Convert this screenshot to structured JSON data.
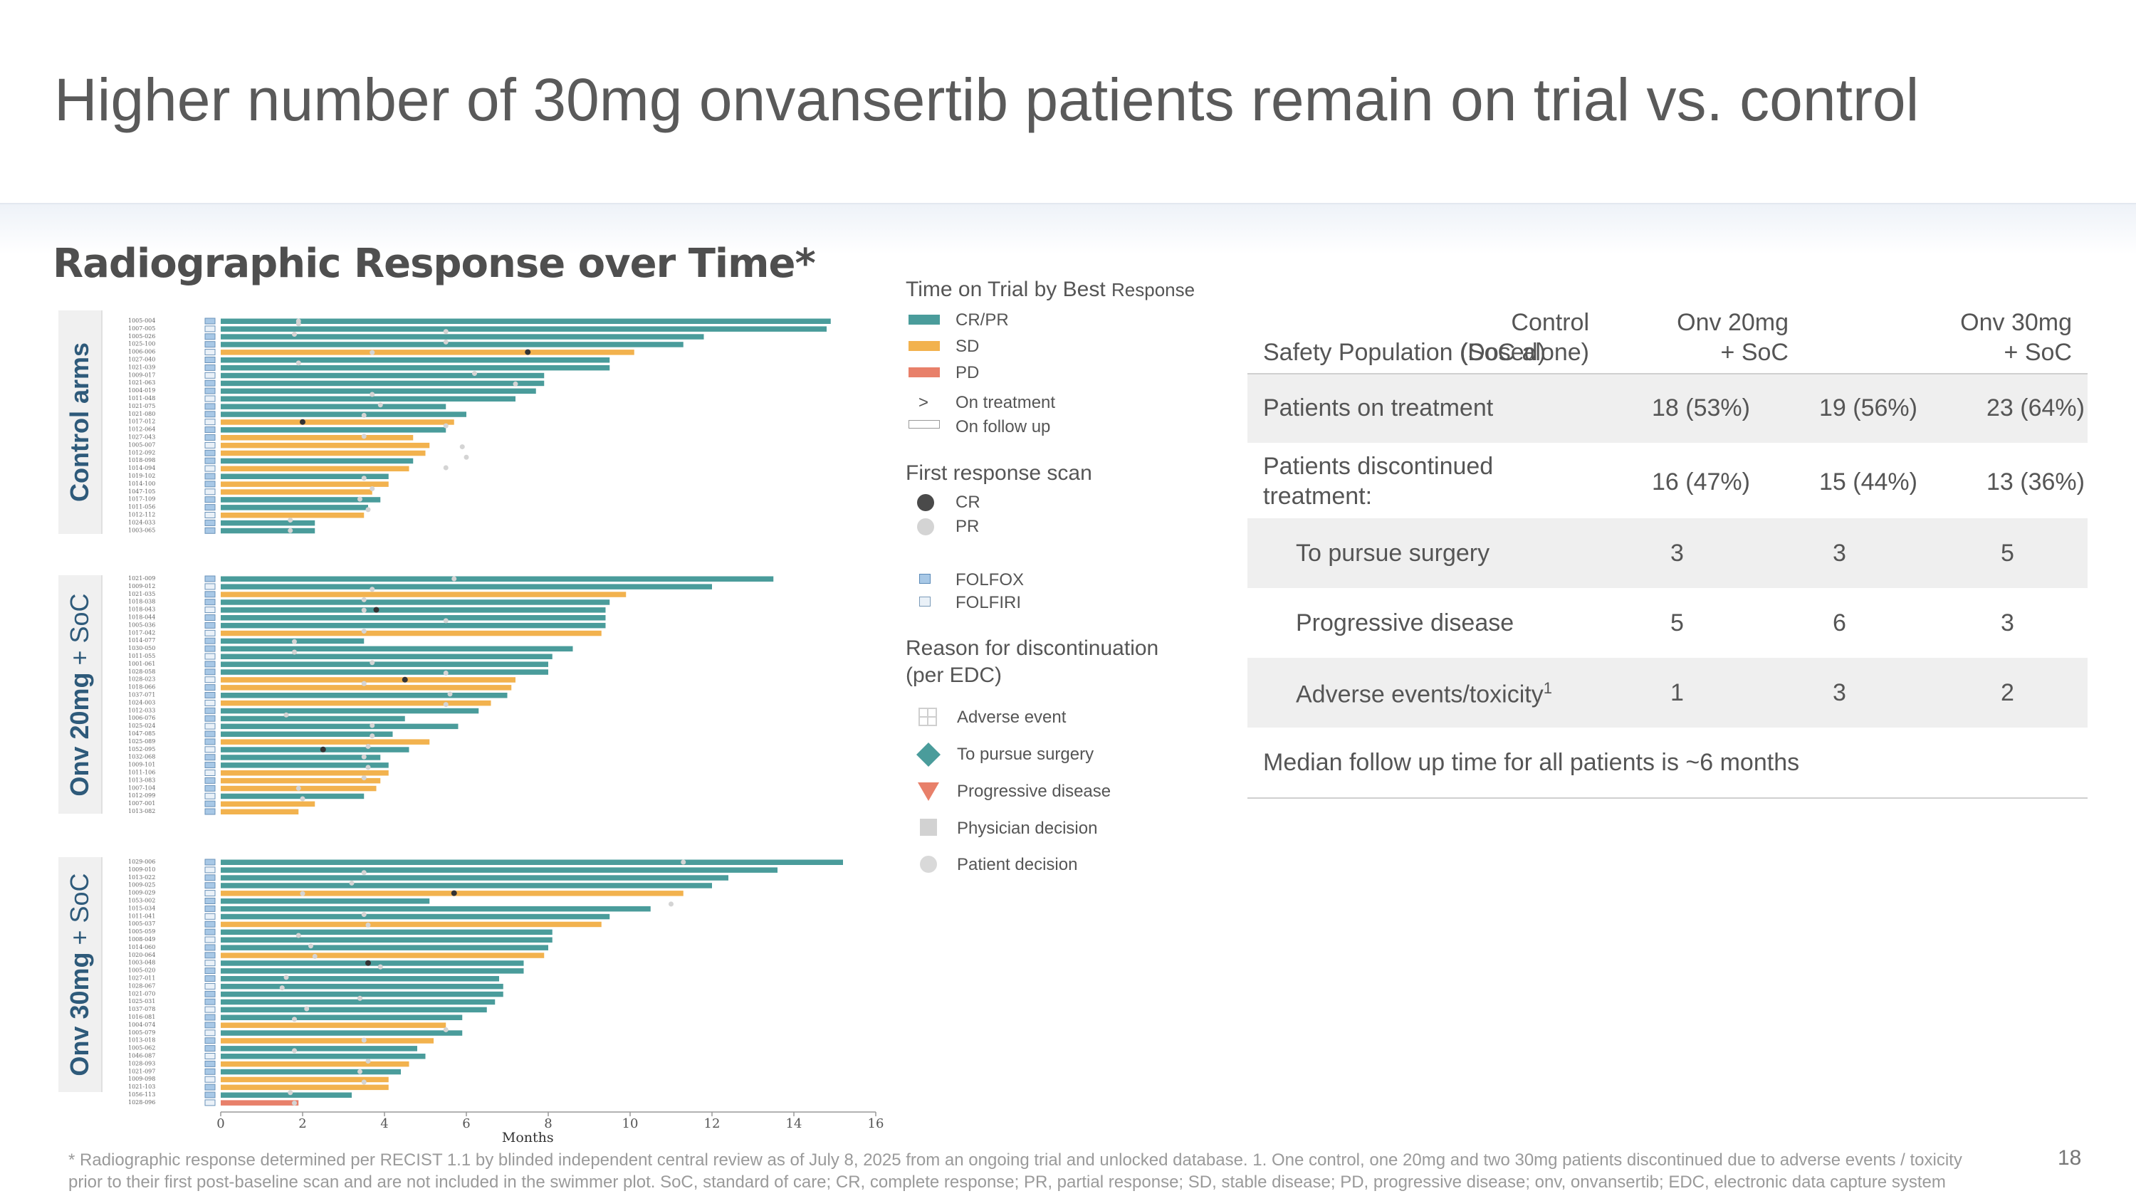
{
  "title": "Higher number of 30mg onvansertib patients remain on trial vs. control",
  "subtitle": "Radiographic Response over Time*",
  "arms": {
    "control": {
      "label": "Control arms"
    },
    "onv20": {
      "bold": "Onv 20mg",
      "rest": " + SoC"
    },
    "onv30": {
      "bold": "Onv 30mg",
      "rest": " + SoC"
    }
  },
  "legend": {
    "title_main": "Time on Trial by Best",
    "title_small": "Response",
    "bar_items": [
      "CR/PR",
      "SD",
      "PD"
    ],
    "on_treatment_symbol": ">",
    "on_treatment": "On treatment",
    "on_follow_up": "On follow up",
    "scan_heading": "First response scan",
    "scan_items": [
      "CR",
      "PR"
    ],
    "regimens": [
      "FOLFOX",
      "FOLFIRI"
    ],
    "reason_heading_1": "Reason for discontinuation",
    "reason_heading_2": "(per EDC)",
    "reasons": [
      "Adverse event",
      "To pursue surgery",
      "Progressive disease",
      "Physician decision",
      "Patient decision"
    ]
  },
  "colors": {
    "crpr": "#4a9c9b",
    "sd": "#f2b24e",
    "pd": "#e8806a",
    "teal_diamond": "#4a9c9b",
    "header_blue": "#2e5a7a"
  },
  "table": {
    "header": {
      "label": "Safety Population (Dosed)",
      "col1_l1": "Control",
      "col1_l2": "(SoC alone)",
      "col2_l1": "Onv 20mg",
      "col2_l2": "+ SoC",
      "col3_l1": "Onv 30mg",
      "col3_l2": "+ SoC"
    },
    "rows": [
      {
        "label": "Patients on treatment",
        "v1": "18 (53%)",
        "v2": "19 (56%)",
        "v3": "23 (64%)"
      },
      {
        "label_1": "Patients discontinued",
        "label_2": "treatment:",
        "v1": "16 (47%)",
        "v2": "15 (44%)",
        "v3": "13 (36%)"
      },
      {
        "label": "To pursue surgery",
        "v1": "3",
        "v2": "3",
        "v3": "5"
      },
      {
        "label": "Progressive disease",
        "v1": "5",
        "v2": "6",
        "v3": "3"
      },
      {
        "label": "Adverse events/toxicity",
        "sup": "1",
        "v1": "1",
        "v2": "3",
        "v3": "2"
      }
    ],
    "note": "Median follow up time for all patients is ~6 months"
  },
  "footnote_1": "* Radiographic response determined per RECIST 1.1 by blinded independent central review as of July 8, 2025 from an ongoing trial and unlocked database. 1. One control, one 20mg and two 30mg patients discontinued due to adverse events / toxicity",
  "footnote_2": "prior to their first post-baseline scan and are not included in the swimmer plot. SoC, standard of care; CR, complete response; PR, partial response; SD, stable disease; PD, progressive disease; onv, onvansertib; EDC, electronic data capture system",
  "page_number": "18",
  "chart_data": {
    "type": "bar",
    "title": "Time on Trial by Best Response",
    "xlabel": "Months",
    "ylabel": "",
    "xlim": [
      0,
      16
    ],
    "xticks": [
      "0",
      "2",
      "4",
      "6",
      "8",
      "10",
      "12",
      "14",
      "16"
    ],
    "panels": [
      {
        "name": "Control arms",
        "ids": [
          "1005-004",
          "1007-005",
          "1005-026",
          "1025-100",
          "1006-006",
          "1027-040",
          "1021-039",
          "1009-017",
          "1021-063",
          "1004-019",
          "1011-048",
          "1021-075",
          "1021-080",
          "1017-012",
          "1012-064",
          "1027-043",
          "1005-007",
          "1012-092",
          "1018-098",
          "1014-094",
          "1019-102",
          "1014-100",
          "1047-105",
          "1017-109",
          "1011-056",
          "1012-112",
          "1024-033",
          "1003-065"
        ],
        "values": [
          14.9,
          14.8,
          11.8,
          11.3,
          10.1,
          9.5,
          9.5,
          7.9,
          7.9,
          7.7,
          7.2,
          5.5,
          6.0,
          5.7,
          5.5,
          4.7,
          5.1,
          5.0,
          4.7,
          4.6,
          4.1,
          4.1,
          3.7,
          3.9,
          3.6,
          3.5,
          2.3,
          2.3
        ],
        "response": [
          "CRPR",
          "CRPR",
          "CRPR",
          "CRPR",
          "SD",
          "CRPR",
          "CRPR",
          "CRPR",
          "CRPR",
          "CRPR",
          "CRPR",
          "CRPR",
          "CRPR",
          "SD",
          "CRPR",
          "SD",
          "SD",
          "SD",
          "CRPR",
          "SD",
          "CRPR",
          "SD",
          "SD",
          "CRPR",
          "CRPR",
          "SD",
          "CRPR",
          "CRPR"
        ]
      },
      {
        "name": "Onv 20mg + SoC",
        "ids": [
          "1021-009",
          "1009-012",
          "1021-035",
          "1018-038",
          "1018-043",
          "1018-044",
          "1005-036",
          "1017-042",
          "1014-077",
          "1030-050",
          "1011-055",
          "1001-061",
          "1028-058",
          "1028-023",
          "1018-066",
          "1037-071",
          "1024-003",
          "1012-033",
          "1006-076",
          "1025-024",
          "1047-085",
          "1025-089",
          "1052-095",
          "1032-068",
          "1009-101",
          "1011-106",
          "1013-083",
          "1007-104",
          "1012-099",
          "1007-001",
          "1013-082"
        ],
        "values": [
          13.5,
          12.0,
          9.9,
          9.5,
          9.4,
          9.4,
          9.4,
          9.3,
          3.5,
          8.6,
          8.1,
          8.0,
          8.0,
          7.2,
          7.1,
          7.0,
          6.6,
          6.3,
          4.5,
          5.8,
          4.2,
          5.1,
          4.6,
          3.9,
          4.1,
          4.1,
          3.9,
          3.8,
          3.5,
          2.3,
          1.9
        ],
        "response": [
          "CRPR",
          "CRPR",
          "SD",
          "CRPR",
          "CRPR",
          "CRPR",
          "CRPR",
          "SD",
          "CRPR",
          "CRPR",
          "CRPR",
          "CRPR",
          "CRPR",
          "SD",
          "SD",
          "CRPR",
          "SD",
          "CRPR",
          "CRPR",
          "CRPR",
          "CRPR",
          "SD",
          "CRPR",
          "CRPR",
          "CRPR",
          "SD",
          "SD",
          "SD",
          "CRPR",
          "SD",
          "SD"
        ]
      },
      {
        "name": "Onv 30mg + SoC",
        "ids": [
          "1029-006",
          "1009-010",
          "1013-022",
          "1009-025",
          "1009-029",
          "1053-002",
          "1015-034",
          "1011-041",
          "1005-037",
          "1005-059",
          "1008-049",
          "1014-060",
          "1020-064",
          "1003-048",
          "1005-020",
          "1027-011",
          "1028-067",
          "1021-070",
          "1025-031",
          "1037-078",
          "1016-081",
          "1004-074",
          "1005-079",
          "1013-018",
          "1005-062",
          "1046-087",
          "1028-093",
          "1021-097",
          "1009-098",
          "1021-103",
          "1056-113",
          "1028-096"
        ],
        "values": [
          15.2,
          13.6,
          12.4,
          12.0,
          11.3,
          5.1,
          10.5,
          9.5,
          9.3,
          8.1,
          8.1,
          8.0,
          7.9,
          7.4,
          7.4,
          6.8,
          6.9,
          6.9,
          6.7,
          6.5,
          5.9,
          5.5,
          5.9,
          5.2,
          4.8,
          5.0,
          4.6,
          4.4,
          4.1,
          4.1,
          3.2,
          1.9
        ],
        "response": [
          "CRPR",
          "CRPR",
          "CRPR",
          "CRPR",
          "SD",
          "CRPR",
          "CRPR",
          "CRPR",
          "SD",
          "CRPR",
          "CRPR",
          "CRPR",
          "SD",
          "CRPR",
          "CRPR",
          "CRPR",
          "CRPR",
          "CRPR",
          "CRPR",
          "CRPR",
          "CRPR",
          "SD",
          "CRPR",
          "SD",
          "CRPR",
          "CRPR",
          "SD",
          "CRPR",
          "SD",
          "SD",
          "CRPR",
          "PD"
        ]
      }
    ],
    "pr_scan_months": [
      [
        1.9,
        5.5,
        5.5,
        3.7,
        1.9,
        6.2,
        7.2,
        3.7,
        3.9,
        3.5,
        5.5,
        3.5,
        5.9,
        6.0,
        5.5,
        3.5,
        3.7,
        3.4,
        3.6,
        1.7,
        1.7,
        1.9,
        1.8
      ],
      [
        5.7,
        3.7,
        3.5,
        3.5,
        5.5,
        3.5,
        1.8,
        1.8,
        3.7,
        5.5,
        3.5,
        5.6,
        5.5,
        1.6,
        3.7,
        3.7,
        3.6,
        3.5,
        3.6,
        3.5,
        1.9,
        2.0
      ],
      [
        11.3,
        3.5,
        3.2,
        2.0,
        11.0,
        3.5,
        3.6,
        1.9,
        2.2,
        2.3,
        3.9,
        1.6,
        1.5,
        3.4,
        2.1,
        1.8,
        5.5,
        3.5,
        1.8,
        3.6,
        3.4,
        3.5,
        1.7,
        1.8
      ]
    ],
    "cr_scan_months": [
      [
        7.5,
        2.0
      ],
      [
        3.8,
        4.5,
        2.5
      ],
      [
        5.7,
        3.6
      ]
    ]
  }
}
